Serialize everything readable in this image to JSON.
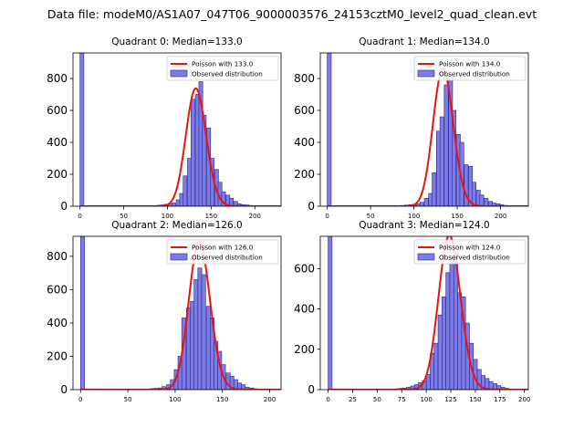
{
  "figure": {
    "title": "Data file: modeM0/AS1A07_047T06_9000003576_24153cztM0_level2_quad_clean.evt"
  },
  "colors": {
    "bar_fill": "#7b7bea",
    "bar_edge": "#2a2a80",
    "curve": "#ee1111"
  },
  "chart_data": [
    {
      "type": "bar",
      "title": "Quadrant 0: Median=133.0",
      "xlim": [
        -8,
        230
      ],
      "ylim": [
        0,
        960
      ],
      "xticks": [
        0,
        50,
        100,
        150,
        200
      ],
      "yticks": [
        0,
        200,
        400,
        600,
        800
      ],
      "bin_width": 4.4,
      "bars": [
        [
          0,
          960
        ],
        [
          79,
          2
        ],
        [
          83,
          3
        ],
        [
          88,
          6
        ],
        [
          92,
          8
        ],
        [
          96,
          12
        ],
        [
          101,
          14
        ],
        [
          105,
          20
        ],
        [
          110,
          40
        ],
        [
          114,
          80
        ],
        [
          118,
          190
        ],
        [
          123,
          300
        ],
        [
          127,
          670
        ],
        [
          132,
          700
        ],
        [
          136,
          780
        ],
        [
          140,
          570
        ],
        [
          145,
          490
        ],
        [
          149,
          300
        ],
        [
          154,
          230
        ],
        [
          158,
          150
        ],
        [
          162,
          90
        ],
        [
          167,
          70
        ],
        [
          171,
          50
        ],
        [
          176,
          30
        ],
        [
          180,
          15
        ],
        [
          184,
          10
        ],
        [
          189,
          8
        ],
        [
          193,
          5
        ],
        [
          198,
          3
        ],
        [
          202,
          2
        ]
      ],
      "mu": 133.0,
      "legend": [
        "Poisson with 133.0",
        "Observed distribution"
      ]
    },
    {
      "type": "bar",
      "title": "Quadrant 1: Median=134.0",
      "xlim": [
        -8,
        232
      ],
      "ylim": [
        0,
        960
      ],
      "xticks": [
        0,
        50,
        100,
        150,
        200
      ],
      "yticks": [
        0,
        200,
        400,
        600,
        800
      ],
      "bin_width": 4.6,
      "bars": [
        [
          0,
          960
        ],
        [
          75,
          2
        ],
        [
          80,
          3
        ],
        [
          84,
          5
        ],
        [
          89,
          7
        ],
        [
          94,
          10
        ],
        [
          98,
          12
        ],
        [
          103,
          15
        ],
        [
          107,
          25
        ],
        [
          112,
          50
        ],
        [
          117,
          80
        ],
        [
          121,
          210
        ],
        [
          126,
          470
        ],
        [
          130,
          560
        ],
        [
          135,
          760
        ],
        [
          140,
          810
        ],
        [
          144,
          600
        ],
        [
          149,
          450
        ],
        [
          153,
          400
        ],
        [
          158,
          260
        ],
        [
          163,
          250
        ],
        [
          167,
          150
        ],
        [
          172,
          100
        ],
        [
          176,
          70
        ],
        [
          181,
          50
        ],
        [
          186,
          30
        ],
        [
          190,
          20
        ],
        [
          195,
          15
        ],
        [
          199,
          10
        ],
        [
          204,
          5
        ],
        [
          209,
          3
        ],
        [
          213,
          2
        ]
      ],
      "mu": 134.0,
      "legend": [
        "Poisson with 134.0",
        "Observed distribution"
      ]
    },
    {
      "type": "bar",
      "title": "Quadrant 2: Median=126.0",
      "xlim": [
        -8,
        212
      ],
      "ylim": [
        0,
        920
      ],
      "xticks": [
        0,
        50,
        100,
        150,
        200
      ],
      "yticks": [
        0,
        200,
        400,
        600,
        800
      ],
      "bin_width": 4.2,
      "bars": [
        [
          0,
          920
        ],
        [
          62,
          2
        ],
        [
          66,
          3
        ],
        [
          70,
          4
        ],
        [
          74,
          6
        ],
        [
          78,
          8
        ],
        [
          82,
          10
        ],
        [
          86,
          18
        ],
        [
          91,
          30
        ],
        [
          95,
          60
        ],
        [
          99,
          120
        ],
        [
          103,
          200
        ],
        [
          107,
          430
        ],
        [
          112,
          490
        ],
        [
          116,
          530
        ],
        [
          120,
          660
        ],
        [
          124,
          730
        ],
        [
          128,
          690
        ],
        [
          133,
          500
        ],
        [
          137,
          430
        ],
        [
          141,
          290
        ],
        [
          145,
          230
        ],
        [
          149,
          150
        ],
        [
          154,
          100
        ],
        [
          158,
          80
        ],
        [
          162,
          60
        ],
        [
          166,
          40
        ],
        [
          170,
          30
        ],
        [
          174,
          15
        ],
        [
          179,
          10
        ],
        [
          183,
          5
        ],
        [
          187,
          3
        ]
      ],
      "mu": 126.0,
      "legend": [
        "Poisson with 126.0",
        "Observed distribution"
      ]
    },
    {
      "type": "bar",
      "title": "Quadrant 3: Median=124.0",
      "xlim": [
        -8,
        204
      ],
      "ylim": [
        0,
        760
      ],
      "xticks": [
        0,
        25,
        50,
        75,
        100,
        125,
        150,
        175,
        200
      ],
      "yticks": [
        0,
        200,
        400,
        600
      ],
      "bin_width": 4.0,
      "bars": [
        [
          0,
          760
        ],
        [
          64,
          2
        ],
        [
          68,
          4
        ],
        [
          72,
          6
        ],
        [
          76,
          8
        ],
        [
          80,
          12
        ],
        [
          84,
          18
        ],
        [
          88,
          25
        ],
        [
          92,
          35
        ],
        [
          96,
          45
        ],
        [
          100,
          75
        ],
        [
          104,
          180
        ],
        [
          108,
          230
        ],
        [
          112,
          370
        ],
        [
          116,
          460
        ],
        [
          120,
          580
        ],
        [
          124,
          630
        ],
        [
          128,
          670
        ],
        [
          132,
          480
        ],
        [
          136,
          460
        ],
        [
          140,
          330
        ],
        [
          144,
          230
        ],
        [
          148,
          150
        ],
        [
          152,
          100
        ],
        [
          156,
          70
        ],
        [
          160,
          55
        ],
        [
          164,
          40
        ],
        [
          168,
          30
        ],
        [
          172,
          20
        ],
        [
          176,
          12
        ],
        [
          180,
          6
        ],
        [
          184,
          3
        ]
      ],
      "mu": 124.0,
      "legend": [
        "Poisson with 124.0",
        "Observed distribution"
      ]
    }
  ]
}
